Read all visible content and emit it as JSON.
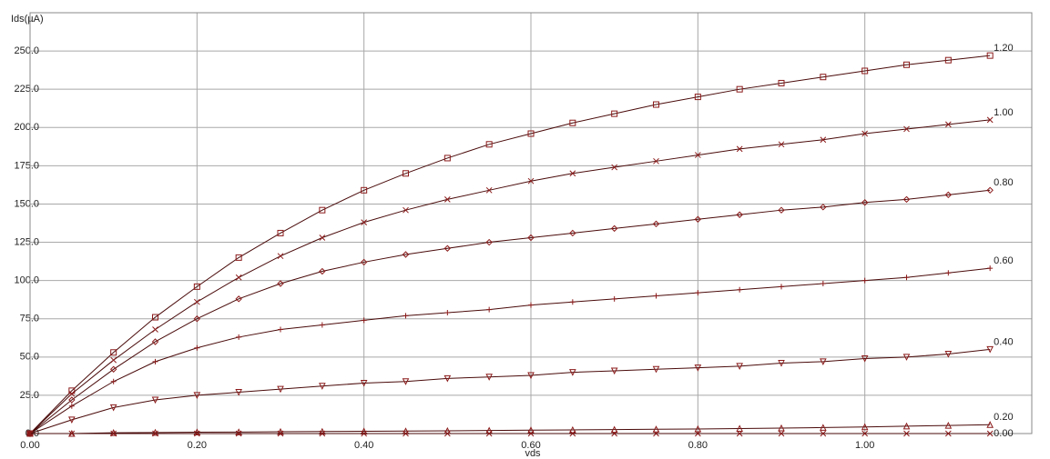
{
  "chart_data": {
    "type": "line",
    "y_label": "Ids(µA)",
    "x_label": "vds",
    "x": [
      0,
      0.05,
      0.1,
      0.15,
      0.2,
      0.25,
      0.3,
      0.35,
      0.4,
      0.45,
      0.5,
      0.55,
      0.6,
      0.65,
      0.7,
      0.75,
      0.8,
      0.85,
      0.9,
      0.95,
      1.0,
      1.05,
      1.1,
      1.15
    ],
    "series": [
      {
        "name": "1.20",
        "color": "#8b1a1a",
        "marker": "square",
        "values": [
          0,
          28,
          53,
          76,
          96,
          115,
          131,
          146,
          159,
          170,
          180,
          189,
          196,
          203,
          209,
          215,
          220,
          225,
          229,
          233,
          237,
          241,
          244,
          247
        ]
      },
      {
        "name": "1.00",
        "color": "#8b1a1a",
        "marker": "x",
        "values": [
          0,
          26,
          48,
          68,
          86,
          102,
          116,
          128,
          138,
          146,
          153,
          159,
          165,
          170,
          174,
          178,
          182,
          186,
          189,
          192,
          196,
          199,
          202,
          205
        ]
      },
      {
        "name": "0.80",
        "color": "#8b1a1a",
        "marker": "diamond",
        "values": [
          0,
          22,
          42,
          60,
          75,
          88,
          98,
          106,
          112,
          117,
          121,
          125,
          128,
          131,
          134,
          137,
          140,
          143,
          146,
          148,
          151,
          153,
          156,
          159
        ]
      },
      {
        "name": "0.60",
        "color": "#8b1a1a",
        "marker": "plus",
        "values": [
          0,
          18,
          34,
          47,
          56,
          63,
          68,
          71,
          74,
          77,
          79,
          81,
          84,
          86,
          88,
          90,
          92,
          94,
          96,
          98,
          100,
          102,
          105,
          108
        ]
      },
      {
        "name": "0.40",
        "color": "#8b1a1a",
        "marker": "triangle-down",
        "values": [
          0,
          9,
          17,
          22,
          25,
          27,
          29,
          31,
          33,
          34,
          36,
          37,
          38,
          40,
          41,
          42,
          43,
          44,
          46,
          47,
          49,
          50,
          52,
          55
        ]
      },
      {
        "name": "0.20",
        "color": "#8b1a1a",
        "marker": "triangle-up",
        "values": [
          0,
          0,
          0.5,
          0.7,
          0.9,
          1.0,
          1.2,
          1.3,
          1.5,
          1.6,
          1.8,
          2.0,
          2.2,
          2.4,
          2.6,
          2.8,
          3.0,
          3.3,
          3.6,
          3.9,
          4.3,
          4.8,
          5.3,
          5.8
        ]
      },
      {
        "name": "0.00",
        "color": "#8b1a1a",
        "marker": "x",
        "values": [
          0,
          0,
          0,
          0,
          0,
          0,
          0,
          0,
          0,
          0,
          0,
          0,
          0,
          0,
          0,
          0,
          0,
          0,
          0,
          0,
          0,
          0,
          0,
          0
        ]
      }
    ],
    "line_color": "#4a0a0a",
    "xlim": [
      0,
      1.2
    ],
    "xticks": [
      {
        "value": 0,
        "label": "0.00"
      },
      {
        "value": 0.2,
        "label": "0.20"
      },
      {
        "value": 0.4,
        "label": "0.40"
      },
      {
        "value": 0.6,
        "label": "0.60"
      },
      {
        "value": 0.8,
        "label": "0.80"
      },
      {
        "value": 1.0,
        "label": "1.00"
      }
    ],
    "ylim": [
      0,
      275
    ],
    "yticks": [
      {
        "value": 0,
        "label": "0.0"
      },
      {
        "value": 25,
        "label": "25.0"
      },
      {
        "value": 50,
        "label": "50.0"
      },
      {
        "value": 75,
        "label": "75.0"
      },
      {
        "value": 100,
        "label": "100.0"
      },
      {
        "value": 125,
        "label": "125.0"
      },
      {
        "value": 150,
        "label": "150.0"
      },
      {
        "value": 175,
        "label": "175.0"
      },
      {
        "value": 200,
        "label": "200.0"
      },
      {
        "value": 225,
        "label": "225.0"
      },
      {
        "value": 250,
        "label": "250.0"
      }
    ],
    "grid": true
  }
}
